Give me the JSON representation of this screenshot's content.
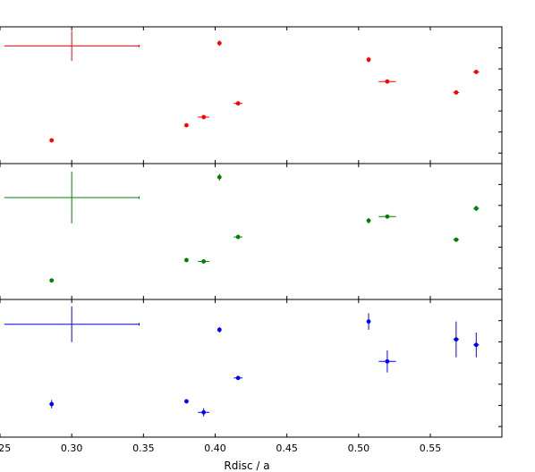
{
  "chart_data": {
    "type": "scatter",
    "xlabel": "Rdisc / a",
    "xlim": [
      0.245,
      0.6
    ],
    "xticks": [
      0.25,
      0.3,
      0.35,
      0.4,
      0.45,
      0.5,
      0.55
    ],
    "xtick_labels": [
      "0.25",
      "0.30",
      "0.35",
      "0.40",
      "0.45",
      "0.50",
      "0.55"
    ],
    "panels": [
      {
        "color": "#ff0000",
        "ylim": [
          0,
          1
        ],
        "points": [
          {
            "x": 0.286,
            "y": 0.17,
            "xerr": 0,
            "yerr": 0.015
          },
          {
            "x": 0.38,
            "y": 0.28,
            "xerr": 0,
            "yerr": 0.015
          },
          {
            "x": 0.392,
            "y": 0.34,
            "xerr": 0.004,
            "yerr": 0.015
          },
          {
            "x": 0.403,
            "y": 0.88,
            "xerr": 0,
            "yerr": 0.02
          },
          {
            "x": 0.416,
            "y": 0.44,
            "xerr": 0.003,
            "yerr": 0.015
          },
          {
            "x": 0.507,
            "y": 0.76,
            "xerr": 0,
            "yerr": 0.02
          },
          {
            "x": 0.52,
            "y": 0.6,
            "xerr": 0.006,
            "yerr": 0.015
          },
          {
            "x": 0.568,
            "y": 0.52,
            "xerr": 0.002,
            "yerr": 0.015
          },
          {
            "x": 0.582,
            "y": 0.67,
            "xerr": 0.002,
            "yerr": 0.015
          }
        ],
        "typical_error": {
          "x": 0.3,
          "y": 0.86,
          "xerr": 0.047,
          "yerr": 0.11
        }
      },
      {
        "color": "#008000",
        "ylim": [
          0,
          1
        ],
        "points": [
          {
            "x": 0.286,
            "y": 0.14,
            "xerr": 0,
            "yerr": 0.015
          },
          {
            "x": 0.38,
            "y": 0.29,
            "xerr": 0,
            "yerr": 0.015
          },
          {
            "x": 0.392,
            "y": 0.28,
            "xerr": 0.004,
            "yerr": 0.015
          },
          {
            "x": 0.403,
            "y": 0.9,
            "xerr": 0,
            "yerr": 0.025
          },
          {
            "x": 0.416,
            "y": 0.46,
            "xerr": 0.003,
            "yerr": 0.015
          },
          {
            "x": 0.507,
            "y": 0.58,
            "xerr": 0,
            "yerr": 0.02
          },
          {
            "x": 0.52,
            "y": 0.61,
            "xerr": 0.006,
            "yerr": 0.015
          },
          {
            "x": 0.568,
            "y": 0.44,
            "xerr": 0.002,
            "yerr": 0.015
          },
          {
            "x": 0.582,
            "y": 0.67,
            "xerr": 0.002,
            "yerr": 0.02
          }
        ],
        "typical_error": {
          "x": 0.3,
          "y": 0.75,
          "xerr": 0.047,
          "yerr": 0.19
        }
      },
      {
        "color": "#0000ff",
        "ylim": [
          0,
          1
        ],
        "points": [
          {
            "x": 0.286,
            "y": 0.24,
            "xerr": 0,
            "yerr": 0.03
          },
          {
            "x": 0.38,
            "y": 0.26,
            "xerr": 0,
            "yerr": 0.015
          },
          {
            "x": 0.392,
            "y": 0.18,
            "xerr": 0.004,
            "yerr": 0.03
          },
          {
            "x": 0.403,
            "y": 0.78,
            "xerr": 0,
            "yerr": 0.02
          },
          {
            "x": 0.416,
            "y": 0.43,
            "xerr": 0.003,
            "yerr": 0.015
          },
          {
            "x": 0.507,
            "y": 0.84,
            "xerr": 0,
            "yerr": 0.06
          },
          {
            "x": 0.52,
            "y": 0.55,
            "xerr": 0.006,
            "yerr": 0.08
          },
          {
            "x": 0.568,
            "y": 0.71,
            "xerr": 0.002,
            "yerr": 0.13
          },
          {
            "x": 0.582,
            "y": 0.67,
            "xerr": 0.002,
            "yerr": 0.09
          }
        ],
        "typical_error": {
          "x": 0.3,
          "y": 0.82,
          "xerr": 0.047,
          "yerr": 0.13
        }
      }
    ]
  }
}
